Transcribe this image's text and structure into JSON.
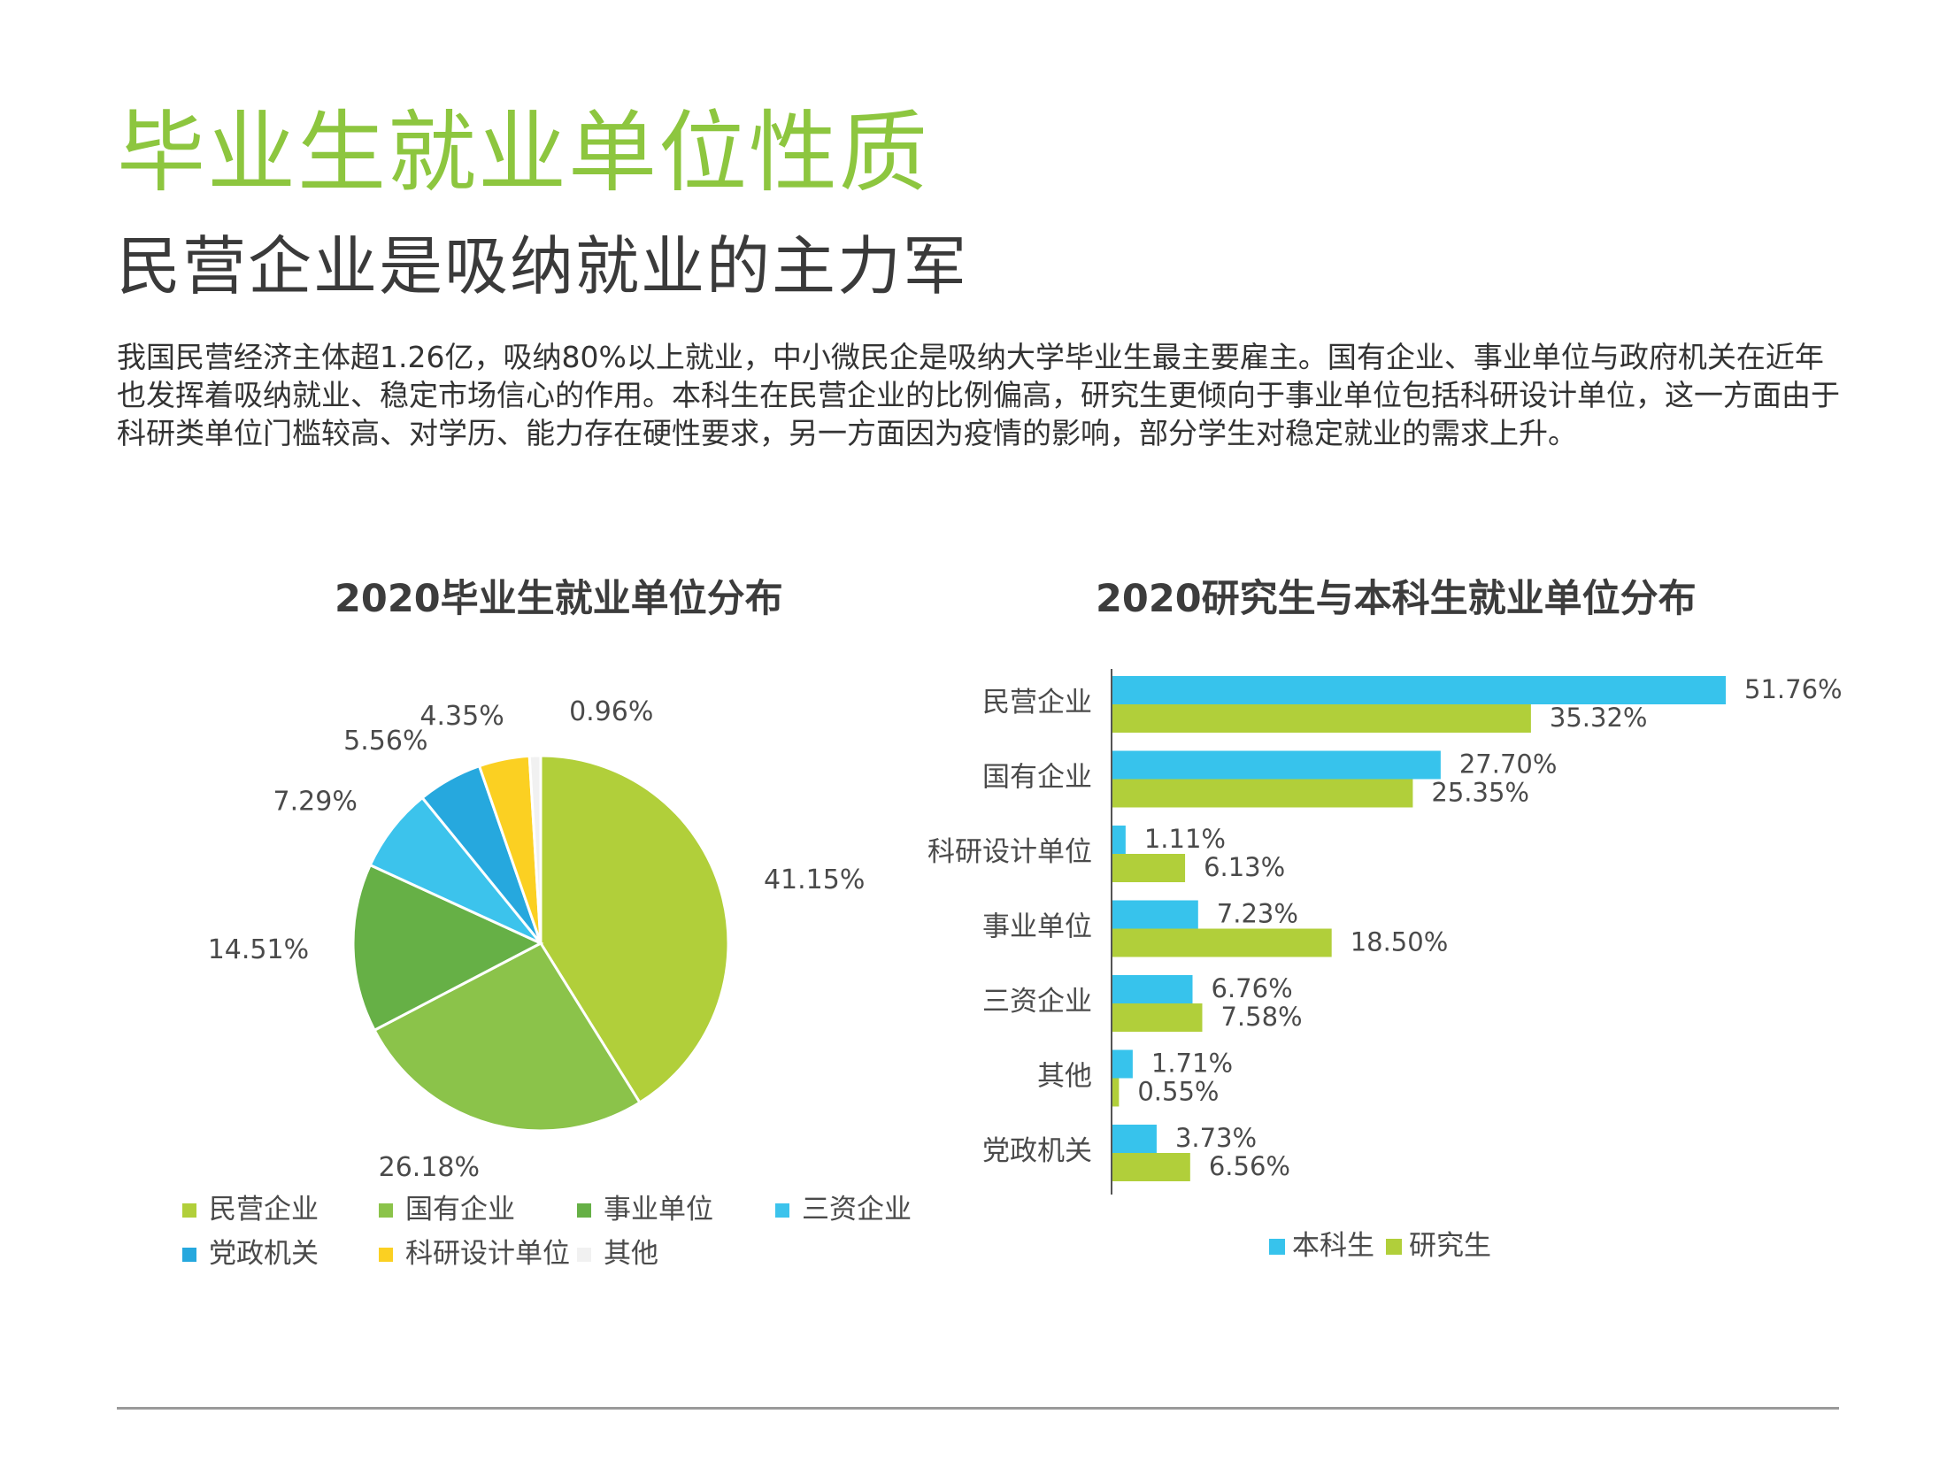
{
  "page": {
    "title": "毕业生就业单位性质",
    "subtitle": "民营企业是吸纳就业的主力军",
    "body": "我国民营经济主体超1.26亿，吸纳80%以上就业，中小微民企是吸纳大学毕业生最主要雇主。国有企业、事业单位与政府机关在近年也发挥着吸纳就业、稳定市场信心的作用。本科生在民营企业的比例偏高，研究生更倾向于事业单位包括科研设计单位，这一方面由于科研类单位门槛较高、对学历、能力存在硬性要求，另一方面因为疫情的影响，部分学生对稳定就业的需求上升。"
  },
  "chart_data": [
    {
      "type": "pie",
      "title": "2020毕业生就业单位分布",
      "categories": [
        "民营企业",
        "国有企业",
        "事业单位",
        "三资企业",
        "党政机关",
        "科研设计单位",
        "其他"
      ],
      "values": [
        41.15,
        26.18,
        14.51,
        7.29,
        5.56,
        4.35,
        0.96
      ],
      "value_labels": [
        "41.15%",
        "26.18%",
        "14.51%",
        "7.29%",
        "5.56%",
        "4.35%",
        "0.96%"
      ],
      "colors": [
        "#b1cf3a",
        "#8bc34a",
        "#66b046",
        "#3cc3ec",
        "#26a8de",
        "#fbd022",
        "#f1f1f1"
      ],
      "legend_position": "bottom"
    },
    {
      "type": "bar",
      "orientation": "horizontal",
      "title": "2020研究生与本科生就业单位分布",
      "categories": [
        "民营企业",
        "国有企业",
        "科研设计单位",
        "事业单位",
        "三资企业",
        "其他",
        "党政机关"
      ],
      "series": [
        {
          "name": "本科生",
          "color": "#37c3ec",
          "values": [
            51.76,
            27.7,
            1.11,
            7.23,
            6.76,
            1.71,
            3.73
          ],
          "labels": [
            "51.76%",
            "27.70%",
            "1.11%",
            "7.23%",
            "6.76%",
            "1.71%",
            "3.73%"
          ]
        },
        {
          "name": "研究生",
          "color": "#b1cf3a",
          "values": [
            35.32,
            25.35,
            6.13,
            18.5,
            7.58,
            0.55,
            6.56
          ],
          "labels": [
            "35.32%",
            "25.35%",
            "6.13%",
            "18.50%",
            "7.58%",
            "0.55%",
            "6.56%"
          ]
        }
      ],
      "xlim": [
        0,
        55
      ],
      "grid": false,
      "legend_position": "bottom"
    }
  ]
}
